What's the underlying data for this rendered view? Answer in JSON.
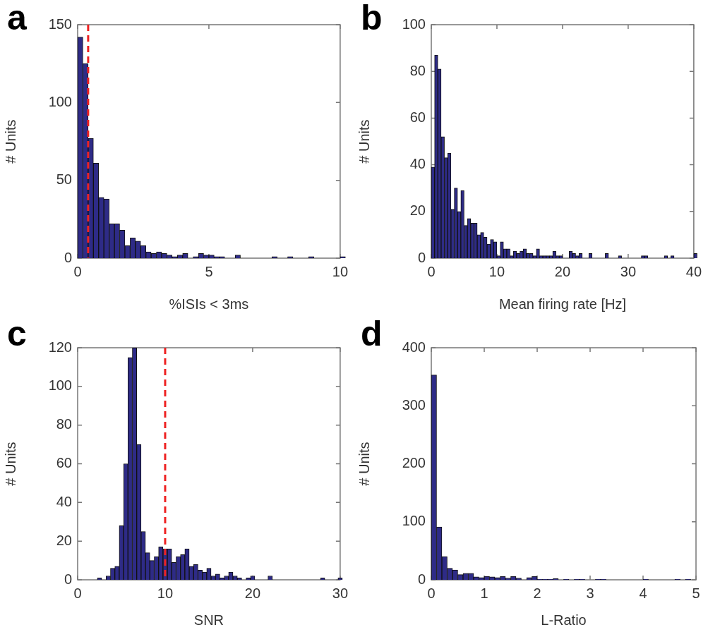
{
  "chart_data": [
    {
      "type": "histogram",
      "title": "a",
      "xlabel": "%ISIs < 3ms",
      "ylabel": "# Units",
      "color": "#2e2b87",
      "bins": [
        0,
        0.2,
        0.4,
        0.6,
        0.8,
        1,
        1.2,
        1.4,
        1.6,
        1.8,
        2,
        2.2,
        2.4,
        2.6,
        2.8,
        3,
        3.2,
        3.4,
        3.6,
        3.8,
        4,
        4.2,
        4.4,
        4.6,
        4.8,
        5,
        5.2,
        5.4,
        5.6,
        5.8,
        6,
        6.2,
        6.4,
        6.6,
        6.8,
        7,
        7.2,
        7.4,
        7.6,
        7.8,
        8,
        8.2,
        8.4,
        8.6,
        8.8,
        9,
        9.2,
        9.4,
        9.6,
        9.8,
        10,
        10.2
      ],
      "values": [
        142,
        125,
        77,
        61,
        39,
        38,
        22,
        22,
        18,
        8,
        13,
        11,
        8,
        4,
        3,
        4,
        3,
        2,
        1,
        2,
        3,
        0,
        1,
        3,
        2,
        2,
        1,
        1,
        0,
        0,
        2,
        0,
        0,
        0,
        0,
        0,
        0,
        1,
        0,
        0,
        1,
        0,
        0,
        0,
        1,
        0,
        0,
        0,
        0,
        0,
        1
      ],
      "xlim": [
        0,
        10
      ],
      "xticks": [
        0,
        5,
        10
      ],
      "ylim": [
        0,
        150
      ],
      "yticks": [
        0,
        50,
        100,
        150
      ],
      "ref_lines": [
        {
          "axis": "x",
          "value": 0.4,
          "color": "#ee2222",
          "line_style": "dashed"
        }
      ]
    },
    {
      "type": "histogram",
      "title": "b",
      "xlabel": "Mean firing rate [Hz]",
      "ylabel": "# Units",
      "color": "#2e2b87",
      "bins": [
        0,
        0.5,
        1,
        1.5,
        2,
        2.5,
        3,
        3.5,
        4,
        4.5,
        5,
        5.5,
        6,
        6.5,
        7,
        7.5,
        8,
        8.5,
        9,
        9.5,
        10,
        10.5,
        11,
        11.5,
        12,
        12.5,
        13,
        13.5,
        14,
        14.5,
        15,
        15.5,
        16,
        16.5,
        17,
        17.5,
        18,
        18.5,
        19,
        19.5,
        20,
        20.5,
        21,
        21.5,
        22,
        22.5,
        23,
        23.5,
        24,
        24.5,
        25,
        25.5,
        26,
        26.5,
        27,
        27.5,
        28,
        28.5,
        29,
        29.5,
        30,
        30.5,
        31,
        31.5,
        32,
        32.5,
        33,
        33.5,
        34,
        34.5,
        35,
        35.5,
        36,
        36.5,
        37,
        37.5,
        38,
        38.5,
        39,
        39.5,
        40,
        40.5
      ],
      "values": [
        39,
        87,
        81,
        52,
        43,
        45,
        21,
        30,
        20,
        29,
        14,
        17,
        15,
        15,
        10,
        11,
        9,
        6,
        8,
        7,
        1,
        7,
        4,
        4,
        1,
        3,
        2,
        3,
        4,
        2,
        2,
        1,
        4,
        1,
        1,
        1,
        1,
        3,
        1,
        1,
        0,
        0,
        3,
        2,
        1,
        2,
        0,
        0,
        2,
        0,
        0,
        0,
        0,
        2,
        0,
        0,
        0,
        1,
        0,
        0,
        0,
        0,
        0,
        0,
        1,
        1,
        0,
        0,
        0,
        0,
        0,
        1,
        0,
        1,
        0,
        0,
        0,
        0,
        0,
        0,
        2
      ],
      "xlim": [
        0,
        40
      ],
      "xticks": [
        0,
        10,
        20,
        30,
        40
      ],
      "ylim": [
        0,
        100
      ],
      "yticks": [
        0,
        20,
        40,
        60,
        80,
        100
      ]
    },
    {
      "type": "histogram",
      "title": "c",
      "xlabel": "SNR",
      "ylabel": "# Units",
      "color": "#2e2b87",
      "bins": [
        2.25,
        2.75,
        3.25,
        3.75,
        4.25,
        4.75,
        5.25,
        5.75,
        6.25,
        6.75,
        7.25,
        7.75,
        8.25,
        8.75,
        9.25,
        9.75,
        10.25,
        10.75,
        11.25,
        11.75,
        12.25,
        12.75,
        13.25,
        13.75,
        14.25,
        14.75,
        15.25,
        15.75,
        16.25,
        16.75,
        17.25,
        17.75,
        18.25,
        18.75,
        19.25,
        19.75,
        20.25,
        20.75,
        21.25,
        21.75,
        22.25,
        22.75,
        23.25,
        23.75,
        24.25,
        24.75,
        25.25,
        25.75,
        26.25,
        26.75,
        27.25,
        27.75,
        28.25,
        28.75,
        29.25,
        29.75,
        30.25
      ],
      "values": [
        1,
        0,
        2,
        6,
        7,
        28,
        60,
        115,
        120,
        70,
        25,
        14,
        10,
        12,
        17,
        16,
        16,
        9,
        12,
        13,
        16,
        7,
        8,
        5,
        4,
        6,
        2,
        3,
        1,
        2,
        4,
        2,
        1,
        0,
        1,
        2,
        0,
        0,
        0,
        2,
        0,
        0,
        0,
        0,
        0,
        0,
        0,
        0,
        0,
        0,
        0,
        1,
        0,
        0,
        0,
        1
      ],
      "xlim": [
        0,
        30
      ],
      "xticks": [
        0,
        10,
        20,
        30
      ],
      "ylim": [
        0,
        120
      ],
      "yticks": [
        0,
        20,
        40,
        60,
        80,
        100,
        120
      ],
      "ref_lines": [
        {
          "axis": "x",
          "value": 10,
          "color": "#ee2222",
          "line_style": "dashed"
        }
      ]
    },
    {
      "type": "histogram",
      "title": "d",
      "xlabel": "L-Ratio",
      "ylabel": "# Units",
      "color": "#2e2b87",
      "bins": [
        0,
        0.1,
        0.2,
        0.3,
        0.4,
        0.5,
        0.6,
        0.7,
        0.8,
        0.9,
        1,
        1.1,
        1.2,
        1.3,
        1.4,
        1.5,
        1.6,
        1.7,
        1.8,
        1.9,
        2,
        2.1,
        2.2,
        2.3,
        2.4,
        2.5,
        2.6,
        2.7,
        2.8,
        2.9,
        3,
        3.1,
        3.2,
        3.3,
        3.4,
        3.5,
        3.6,
        3.7,
        3.8,
        3.9,
        4,
        4.1,
        4.2,
        4.3,
        4.4,
        4.5,
        4.6,
        4.7,
        4.8,
        4.9,
        5
      ],
      "values": [
        353,
        91,
        40,
        20,
        17,
        9,
        11,
        11,
        5,
        4,
        6,
        5,
        4,
        6,
        3,
        6,
        3,
        0,
        4,
        6,
        1,
        1,
        1,
        2,
        0,
        1,
        0,
        1,
        1,
        0,
        0,
        1,
        1,
        0,
        0,
        0,
        0,
        0,
        0,
        0,
        1,
        0,
        0,
        0,
        0,
        0,
        1,
        0,
        1,
        0
      ],
      "xlim": [
        0,
        5
      ],
      "xticks": [
        0,
        1,
        2,
        3,
        4,
        5
      ],
      "ylim": [
        0,
        400
      ],
      "yticks": [
        0,
        100,
        200,
        300,
        400
      ]
    }
  ]
}
